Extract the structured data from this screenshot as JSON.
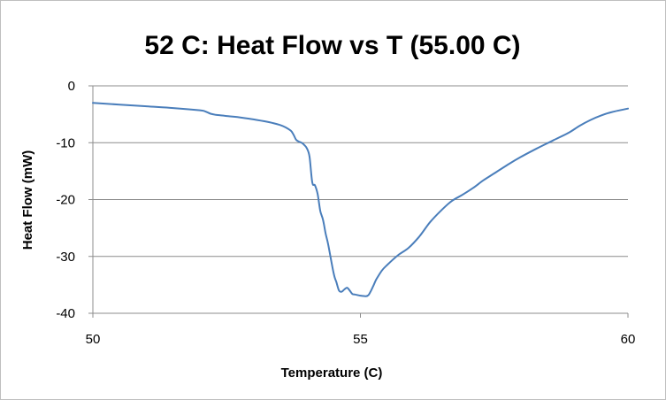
{
  "chart_data": {
    "type": "line",
    "title": "52 C: Heat Flow vs T (55.00 C)",
    "xlabel": "Temperature (C)",
    "ylabel": "Heat Flow (mW)",
    "xlim": [
      50,
      60
    ],
    "ylim": [
      -40,
      0
    ],
    "x_ticks": [
      "50",
      "55",
      "60"
    ],
    "y_ticks": [
      "0",
      "-10",
      "-20",
      "-30",
      "-40"
    ],
    "grid": "horizontal",
    "series_color": "#4a7ebb",
    "series": [
      {
        "name": "Heat Flow",
        "x": [
          50.0,
          50.5,
          51.0,
          51.5,
          52.0,
          52.1,
          52.2,
          52.3,
          52.5,
          52.7,
          53.0,
          53.3,
          53.5,
          53.6,
          53.7,
          53.75,
          53.8,
          53.85,
          53.9,
          53.95,
          54.0,
          54.05,
          54.1,
          54.15,
          54.2,
          54.25,
          54.3,
          54.35,
          54.4,
          54.5,
          54.55,
          54.6,
          54.65,
          54.7,
          54.75,
          54.8,
          54.85,
          54.9,
          55.0,
          55.1,
          55.15,
          55.2,
          55.25,
          55.3,
          55.4,
          55.5,
          55.7,
          55.9,
          56.1,
          56.3,
          56.5,
          56.7,
          56.9,
          57.1,
          57.3,
          57.5,
          57.8,
          58.0,
          58.3,
          58.6,
          58.9,
          59.1,
          59.3,
          59.5,
          59.7,
          60.0
        ],
        "y": [
          -3.0,
          -3.3,
          -3.6,
          -3.9,
          -4.3,
          -4.5,
          -4.9,
          -5.1,
          -5.3,
          -5.5,
          -5.9,
          -6.4,
          -6.9,
          -7.3,
          -7.9,
          -8.6,
          -9.5,
          -9.8,
          -10.0,
          -10.4,
          -11.0,
          -12.5,
          -17.0,
          -17.5,
          -19.0,
          -22.0,
          -23.5,
          -26.0,
          -28.0,
          -33.0,
          -34.5,
          -36.0,
          -36.2,
          -35.8,
          -35.5,
          -36.0,
          -36.6,
          -36.7,
          -36.9,
          -37.0,
          -36.8,
          -36.0,
          -35.0,
          -34.0,
          -32.5,
          -31.5,
          -29.8,
          -28.5,
          -26.5,
          -24.0,
          -22.0,
          -20.3,
          -19.2,
          -18.0,
          -16.6,
          -15.4,
          -13.6,
          -12.5,
          -11.0,
          -9.6,
          -8.2,
          -7.0,
          -6.0,
          -5.2,
          -4.6,
          -4.0
        ]
      }
    ]
  }
}
